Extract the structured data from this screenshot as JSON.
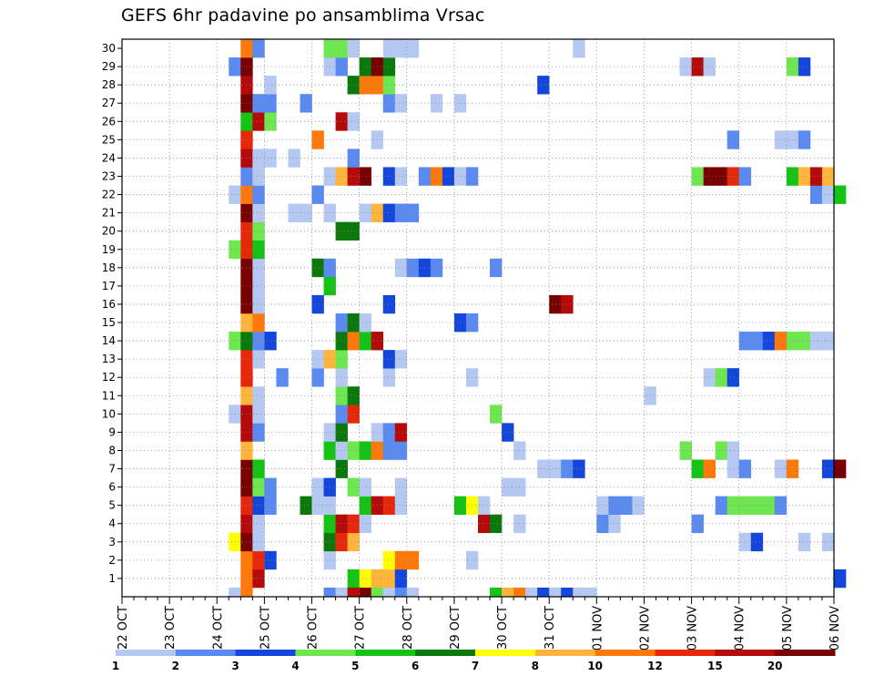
{
  "chart_data": {
    "type": "heatmap",
    "title": "GEFS 6hr padavine po ansamblima Vrsac",
    "xlabel": "",
    "ylabel": "",
    "x_ticks": [
      "22 OCT",
      "23 OCT",
      "24 OCT",
      "25 OCT",
      "26 OCT",
      "27 OCT",
      "28 OCT",
      "29 OCT",
      "30 OCT",
      "31 OCT",
      "01 NOV",
      "02 NOV",
      "03 NOV",
      "04 NOV",
      "05 NOV",
      "06 NOV"
    ],
    "y_ticks": [
      "1",
      "2",
      "3",
      "4",
      "5",
      "6",
      "7",
      "8",
      "9",
      "10",
      "11",
      "12",
      "13",
      "14",
      "15",
      "16",
      "17",
      "18",
      "19",
      "20",
      "21",
      "22",
      "23",
      "24",
      "25",
      "26",
      "27",
      "28",
      "29",
      "30"
    ],
    "xlim": [
      "22 OCT",
      "06 NOV"
    ],
    "time_step_hours": 6,
    "ylim": [
      0,
      30
    ],
    "grid": true,
    "colorbar": {
      "labels": [
        "1",
        "2",
        "3",
        "4",
        "5",
        "6",
        "7",
        "8",
        "10",
        "12",
        "15",
        "20"
      ],
      "colors": [
        "#b4c8f2",
        "#5a8af0",
        "#1446dc",
        "#6ee650",
        "#14c314",
        "#0a780a",
        "#ffff00",
        "#ffb43c",
        "#ff780a",
        "#e6280a",
        "#b40a0a",
        "#780000"
      ]
    },
    "cells": [
      [
        "1",
        "24 OCT 12Z",
        10
      ],
      [
        "1",
        "24 OCT 18Z",
        15
      ],
      [
        "1",
        "26 OCT 18Z",
        5
      ],
      [
        "1",
        "27 OCT 00Z",
        7
      ],
      [
        "1",
        "27 OCT 06Z",
        8
      ],
      [
        "1",
        "27 OCT 12Z",
        8
      ],
      [
        "1",
        "27 OCT 18Z",
        3
      ],
      [
        "1",
        "06 NOV 00Z",
        3
      ],
      [
        "2",
        "24 OCT 12Z",
        10
      ],
      [
        "2",
        "24 OCT 18Z",
        12
      ],
      [
        "2",
        "25 OCT 00Z",
        3
      ],
      [
        "2",
        "26 OCT 06Z",
        1
      ],
      [
        "2",
        "27 OCT 12Z",
        7
      ],
      [
        "2",
        "27 OCT 18Z",
        10
      ],
      [
        "2",
        "28 OCT 00Z",
        10
      ],
      [
        "2",
        "29 OCT 06Z",
        1
      ],
      [
        "3",
        "24 OCT 06Z",
        7
      ],
      [
        "3",
        "24 OCT 12Z",
        20
      ],
      [
        "3",
        "24 OCT 18Z",
        1
      ],
      [
        "3",
        "26 OCT 06Z",
        6
      ],
      [
        "3",
        "26 OCT 12Z",
        12
      ],
      [
        "3",
        "26 OCT 18Z",
        8
      ],
      [
        "3",
        "04 NOV 00Z",
        1
      ],
      [
        "3",
        "04 NOV 06Z",
        3
      ],
      [
        "3",
        "05 NOV 06Z",
        1
      ],
      [
        "3",
        "05 NOV 18Z",
        1
      ],
      [
        "4",
        "24 OCT 12Z",
        15
      ],
      [
        "4",
        "24 OCT 18Z",
        1
      ],
      [
        "4",
        "26 OCT 06Z",
        5
      ],
      [
        "4",
        "26 OCT 12Z",
        15
      ],
      [
        "4",
        "26 OCT 18Z",
        12
      ],
      [
        "4",
        "27 OCT 00Z",
        1
      ],
      [
        "4",
        "29 OCT 12Z",
        15
      ],
      [
        "4",
        "29 OCT 18Z",
        6
      ],
      [
        "4",
        "30 OCT 06Z",
        1
      ],
      [
        "4",
        "01 NOV 00Z",
        2
      ],
      [
        "4",
        "01 NOV 06Z",
        1
      ],
      [
        "4",
        "03 NOV 00Z",
        2
      ],
      [
        "5",
        "24 OCT 12Z",
        12
      ],
      [
        "5",
        "24 OCT 18Z",
        3
      ],
      [
        "5",
        "25 OCT 00Z",
        2
      ],
      [
        "5",
        "25 OCT 18Z",
        6
      ],
      [
        "5",
        "26 OCT 00Z",
        1
      ],
      [
        "5",
        "26 OCT 06Z",
        1
      ],
      [
        "5",
        "27 OCT 00Z",
        5
      ],
      [
        "5",
        "27 OCT 06Z",
        15
      ],
      [
        "5",
        "27 OCT 12Z",
        12
      ],
      [
        "5",
        "27 OCT 18Z",
        1
      ],
      [
        "5",
        "29 OCT 00Z",
        5
      ],
      [
        "5",
        "29 OCT 06Z",
        7
      ],
      [
        "5",
        "29 OCT 12Z",
        1
      ],
      [
        "5",
        "01 NOV 00Z",
        1
      ],
      [
        "5",
        "01 NOV 06Z",
        2
      ],
      [
        "5",
        "01 NOV 12Z",
        2
      ],
      [
        "5",
        "01 NOV 18Z",
        1
      ],
      [
        "5",
        "03 NOV 12Z",
        2
      ],
      [
        "5",
        "03 NOV 18Z",
        4
      ],
      [
        "5",
        "04 NOV 00Z",
        4
      ],
      [
        "5",
        "04 NOV 06Z",
        4
      ],
      [
        "5",
        "04 NOV 12Z",
        4
      ],
      [
        "5",
        "04 NOV 18Z",
        2
      ],
      [
        "6",
        "24 OCT 12Z",
        20
      ],
      [
        "6",
        "24 OCT 18Z",
        4
      ],
      [
        "6",
        "25 OCT 00Z",
        2
      ],
      [
        "6",
        "26 OCT 00Z",
        1
      ],
      [
        "6",
        "26 OCT 06Z",
        3
      ],
      [
        "6",
        "26 OCT 18Z",
        4
      ],
      [
        "6",
        "27 OCT 00Z",
        1
      ],
      [
        "6",
        "27 OCT 18Z",
        1
      ],
      [
        "6",
        "30 OCT 00Z",
        1
      ],
      [
        "6",
        "30 OCT 06Z",
        1
      ],
      [
        "7",
        "24 OCT 12Z",
        20
      ],
      [
        "7",
        "24 OCT 18Z",
        5
      ],
      [
        "7",
        "26 OCT 12Z",
        6
      ],
      [
        "7",
        "30 OCT 18Z",
        1
      ],
      [
        "7",
        "31 OCT 00Z",
        1
      ],
      [
        "7",
        "31 OCT 06Z",
        2
      ],
      [
        "7",
        "31 OCT 12Z",
        3
      ],
      [
        "7",
        "03 NOV 00Z",
        5
      ],
      [
        "7",
        "03 NOV 06Z",
        10
      ],
      [
        "7",
        "03 NOV 18Z",
        1
      ],
      [
        "7",
        "04 NOV 00Z",
        2
      ],
      [
        "7",
        "04 NOV 18Z",
        1
      ],
      [
        "7",
        "05 NOV 00Z",
        10
      ],
      [
        "7",
        "05 NOV 18Z",
        3
      ],
      [
        "7",
        "06 NOV 00Z",
        20
      ],
      [
        "8",
        "24 OCT 12Z",
        8
      ],
      [
        "8",
        "26 OCT 06Z",
        5
      ],
      [
        "8",
        "26 OCT 12Z",
        1
      ],
      [
        "8",
        "26 OCT 18Z",
        4
      ],
      [
        "8",
        "27 OCT 00Z",
        5
      ],
      [
        "8",
        "27 OCT 06Z",
        10
      ],
      [
        "8",
        "27 OCT 12Z",
        2
      ],
      [
        "8",
        "27 OCT 18Z",
        2
      ],
      [
        "8",
        "30 OCT 06Z",
        1
      ],
      [
        "8",
        "02 NOV 18Z",
        4
      ],
      [
        "8",
        "03 NOV 12Z",
        4
      ],
      [
        "8",
        "03 NOV 18Z",
        1
      ],
      [
        "9",
        "24 OCT 12Z",
        15
      ],
      [
        "9",
        "24 OCT 18Z",
        2
      ],
      [
        "9",
        "26 OCT 06Z",
        1
      ],
      [
        "9",
        "26 OCT 12Z",
        6
      ],
      [
        "9",
        "27 OCT 06Z",
        1
      ],
      [
        "9",
        "27 OCT 12Z",
        2
      ],
      [
        "9",
        "27 OCT 18Z",
        15
      ],
      [
        "9",
        "30 OCT 00Z",
        3
      ],
      [
        "10",
        "24 OCT 06Z",
        1
      ],
      [
        "10",
        "24 OCT 12Z",
        15
      ],
      [
        "10",
        "24 OCT 18Z",
        1
      ],
      [
        "10",
        "26 OCT 12Z",
        2
      ],
      [
        "10",
        "26 OCT 18Z",
        12
      ],
      [
        "10",
        "29 OCT 18Z",
        4
      ],
      [
        "11",
        "24 OCT 12Z",
        8
      ],
      [
        "11",
        "24 OCT 18Z",
        1
      ],
      [
        "11",
        "26 OCT 12Z",
        4
      ],
      [
        "11",
        "26 OCT 18Z",
        6
      ],
      [
        "11",
        "02 NOV 00Z",
        1
      ],
      [
        "12",
        "24 OCT 12Z",
        12
      ],
      [
        "12",
        "25 OCT 06Z",
        2
      ],
      [
        "12",
        "26 OCT 00Z",
        2
      ],
      [
        "12",
        "26 OCT 12Z",
        1
      ],
      [
        "12",
        "27 OCT 12Z",
        1
      ],
      [
        "12",
        "29 OCT 06Z",
        1
      ],
      [
        "12",
        "03 NOV 06Z",
        1
      ],
      [
        "12",
        "03 NOV 12Z",
        4
      ],
      [
        "12",
        "03 NOV 18Z",
        3
      ],
      [
        "13",
        "24 OCT 12Z",
        12
      ],
      [
        "13",
        "24 OCT 18Z",
        1
      ],
      [
        "13",
        "26 OCT 00Z",
        1
      ],
      [
        "13",
        "26 OCT 06Z",
        8
      ],
      [
        "13",
        "26 OCT 12Z",
        4
      ],
      [
        "13",
        "27 OCT 12Z",
        3
      ],
      [
        "13",
        "27 OCT 18Z",
        1
      ],
      [
        "14",
        "24 OCT 06Z",
        4
      ],
      [
        "14",
        "24 OCT 12Z",
        6
      ],
      [
        "14",
        "24 OCT 18Z",
        2
      ],
      [
        "14",
        "25 OCT 00Z",
        3
      ],
      [
        "14",
        "26 OCT 12Z",
        6
      ],
      [
        "14",
        "26 OCT 18Z",
        10
      ],
      [
        "14",
        "27 OCT 00Z",
        5
      ],
      [
        "14",
        "27 OCT 06Z",
        15
      ],
      [
        "14",
        "04 NOV 00Z",
        2
      ],
      [
        "14",
        "04 NOV 06Z",
        2
      ],
      [
        "14",
        "04 NOV 12Z",
        3
      ],
      [
        "14",
        "04 NOV 18Z",
        10
      ],
      [
        "14",
        "05 NOV 00Z",
        4
      ],
      [
        "14",
        "05 NOV 06Z",
        4
      ],
      [
        "14",
        "05 NOV 12Z",
        1
      ],
      [
        "14",
        "05 NOV 18Z",
        1
      ],
      [
        "15",
        "24 OCT 12Z",
        8
      ],
      [
        "15",
        "24 OCT 18Z",
        10
      ],
      [
        "15",
        "26 OCT 12Z",
        2
      ],
      [
        "15",
        "26 OCT 18Z",
        6
      ],
      [
        "15",
        "27 OCT 00Z",
        1
      ],
      [
        "15",
        "29 OCT 00Z",
        3
      ],
      [
        "15",
        "29 OCT 06Z",
        2
      ],
      [
        "16",
        "24 OCT 12Z",
        20
      ],
      [
        "16",
        "24 OCT 18Z",
        1
      ],
      [
        "16",
        "26 OCT 00Z",
        3
      ],
      [
        "16",
        "27 OCT 12Z",
        3
      ],
      [
        "16",
        "31 OCT 00Z",
        20
      ],
      [
        "16",
        "31 OCT 06Z",
        15
      ],
      [
        "17",
        "24 OCT 12Z",
        20
      ],
      [
        "17",
        "24 OCT 18Z",
        1
      ],
      [
        "17",
        "26 OCT 06Z",
        5
      ],
      [
        "18",
        "24 OCT 12Z",
        20
      ],
      [
        "18",
        "24 OCT 18Z",
        1
      ],
      [
        "18",
        "26 OCT 00Z",
        6
      ],
      [
        "18",
        "26 OCT 06Z",
        2
      ],
      [
        "18",
        "27 OCT 18Z",
        1
      ],
      [
        "18",
        "28 OCT 00Z",
        2
      ],
      [
        "18",
        "28 OCT 06Z",
        3
      ],
      [
        "18",
        "28 OCT 12Z",
        2
      ],
      [
        "18",
        "29 OCT 18Z",
        2
      ],
      [
        "19",
        "24 OCT 06Z",
        4
      ],
      [
        "19",
        "24 OCT 12Z",
        12
      ],
      [
        "19",
        "24 OCT 18Z",
        5
      ],
      [
        "20",
        "24 OCT 12Z",
        12
      ],
      [
        "20",
        "24 OCT 18Z",
        4
      ],
      [
        "20",
        "26 OCT 12Z",
        6
      ],
      [
        "20",
        "26 OCT 18Z",
        6
      ],
      [
        "21",
        "24 OCT 12Z",
        20
      ],
      [
        "21",
        "24 OCT 18Z",
        1
      ],
      [
        "21",
        "25 OCT 12Z",
        1
      ],
      [
        "21",
        "25 OCT 18Z",
        1
      ],
      [
        "21",
        "26 OCT 06Z",
        1
      ],
      [
        "21",
        "27 OCT 00Z",
        1
      ],
      [
        "21",
        "27 OCT 06Z",
        8
      ],
      [
        "21",
        "27 OCT 12Z",
        3
      ],
      [
        "21",
        "27 OCT 18Z",
        2
      ],
      [
        "21",
        "28 OCT 00Z",
        2
      ],
      [
        "22",
        "24 OCT 06Z",
        1
      ],
      [
        "22",
        "24 OCT 12Z",
        10
      ],
      [
        "22",
        "24 OCT 18Z",
        2
      ],
      [
        "22",
        "26 OCT 00Z",
        2
      ],
      [
        "22",
        "05 NOV 12Z",
        2
      ],
      [
        "22",
        "05 NOV 18Z",
        1
      ],
      [
        "22",
        "06 NOV 00Z",
        5
      ],
      [
        "23",
        "24 OCT 12Z",
        2
      ],
      [
        "23",
        "24 OCT 18Z",
        1
      ],
      [
        "23",
        "26 OCT 06Z",
        1
      ],
      [
        "23",
        "26 OCT 12Z",
        8
      ],
      [
        "23",
        "26 OCT 18Z",
        15
      ],
      [
        "23",
        "27 OCT 00Z",
        20
      ],
      [
        "23",
        "27 OCT 12Z",
        3
      ],
      [
        "23",
        "27 OCT 18Z",
        1
      ],
      [
        "23",
        "28 OCT 06Z",
        2
      ],
      [
        "23",
        "28 OCT 12Z",
        10
      ],
      [
        "23",
        "28 OCT 18Z",
        3
      ],
      [
        "23",
        "29 OCT 00Z",
        1
      ],
      [
        "23",
        "29 OCT 06Z",
        2
      ],
      [
        "23",
        "03 NOV 00Z",
        4
      ],
      [
        "23",
        "03 NOV 06Z",
        20
      ],
      [
        "23",
        "03 NOV 12Z",
        20
      ],
      [
        "23",
        "03 NOV 18Z",
        12
      ],
      [
        "23",
        "04 NOV 00Z",
        2
      ],
      [
        "23",
        "05 NOV 00Z",
        5
      ],
      [
        "23",
        "05 NOV 06Z",
        8
      ],
      [
        "23",
        "05 NOV 12Z",
        15
      ],
      [
        "23",
        "05 NOV 18Z",
        8
      ],
      [
        "24",
        "24 OCT 12Z",
        15
      ],
      [
        "24",
        "24 OCT 18Z",
        1
      ],
      [
        "24",
        "25 OCT 00Z",
        1
      ],
      [
        "24",
        "25 OCT 12Z",
        1
      ],
      [
        "24",
        "26 OCT 18Z",
        2
      ],
      [
        "25",
        "24 OCT 12Z",
        12
      ],
      [
        "25",
        "26 OCT 00Z",
        10
      ],
      [
        "25",
        "27 OCT 06Z",
        1
      ],
      [
        "25",
        "03 NOV 18Z",
        2
      ],
      [
        "25",
        "04 NOV 18Z",
        1
      ],
      [
        "25",
        "05 NOV 00Z",
        1
      ],
      [
        "25",
        "05 NOV 06Z",
        2
      ],
      [
        "26",
        "24 OCT 12Z",
        5
      ],
      [
        "26",
        "24 OCT 18Z",
        15
      ],
      [
        "26",
        "25 OCT 00Z",
        4
      ],
      [
        "26",
        "26 OCT 12Z",
        15
      ],
      [
        "26",
        "26 OCT 18Z",
        1
      ],
      [
        "27",
        "24 OCT 12Z",
        20
      ],
      [
        "27",
        "24 OCT 18Z",
        2
      ],
      [
        "27",
        "25 OCT 00Z",
        2
      ],
      [
        "27",
        "25 OCT 18Z",
        2
      ],
      [
        "27",
        "27 OCT 12Z",
        2
      ],
      [
        "27",
        "27 OCT 18Z",
        1
      ],
      [
        "27",
        "28 OCT 12Z",
        1
      ],
      [
        "27",
        "29 OCT 00Z",
        1
      ],
      [
        "28",
        "24 OCT 12Z",
        15
      ],
      [
        "28",
        "25 OCT 00Z",
        1
      ],
      [
        "28",
        "26 OCT 18Z",
        6
      ],
      [
        "28",
        "27 OCT 00Z",
        10
      ],
      [
        "28",
        "27 OCT 06Z",
        10
      ],
      [
        "28",
        "27 OCT 12Z",
        4
      ],
      [
        "28",
        "30 OCT 18Z",
        3
      ],
      [
        "29",
        "24 OCT 06Z",
        2
      ],
      [
        "29",
        "24 OCT 12Z",
        20
      ],
      [
        "29",
        "26 OCT 06Z",
        1
      ],
      [
        "29",
        "26 OCT 12Z",
        2
      ],
      [
        "29",
        "27 OCT 00Z",
        6
      ],
      [
        "29",
        "27 OCT 06Z",
        20
      ],
      [
        "29",
        "27 OCT 12Z",
        6
      ],
      [
        "29",
        "02 NOV 18Z",
        1
      ],
      [
        "29",
        "03 NOV 00Z",
        15
      ],
      [
        "29",
        "03 NOV 06Z",
        1
      ],
      [
        "29",
        "05 NOV 00Z",
        4
      ],
      [
        "29",
        "05 NOV 06Z",
        3
      ],
      [
        "30",
        "24 OCT 12Z",
        10
      ],
      [
        "30",
        "24 OCT 18Z",
        2
      ],
      [
        "30",
        "26 OCT 06Z",
        4
      ],
      [
        "30",
        "26 OCT 12Z",
        4
      ],
      [
        "30",
        "26 OCT 18Z",
        1
      ],
      [
        "30",
        "27 OCT 12Z",
        1
      ],
      [
        "30",
        "27 OCT 18Z",
        1
      ],
      [
        "30",
        "28 OCT 00Z",
        1
      ],
      [
        "30",
        "31 OCT 12Z",
        1
      ],
      [
        "0",
        "24 OCT 06Z",
        1
      ],
      [
        "0",
        "24 OCT 12Z",
        10
      ],
      [
        "0",
        "26 OCT 06Z",
        2
      ],
      [
        "0",
        "26 OCT 12Z",
        1
      ],
      [
        "0",
        "26 OCT 18Z",
        15
      ],
      [
        "0",
        "27 OCT 00Z",
        20
      ],
      [
        "0",
        "27 OCT 06Z",
        4
      ],
      [
        "0",
        "27 OCT 12Z",
        1
      ],
      [
        "0",
        "27 OCT 18Z",
        2
      ],
      [
        "0",
        "28 OCT 00Z",
        1
      ],
      [
        "0",
        "29 OCT 18Z",
        5
      ],
      [
        "0",
        "30 OCT 00Z",
        8
      ],
      [
        "0",
        "30 OCT 06Z",
        10
      ],
      [
        "0",
        "30 OCT 12Z",
        1
      ],
      [
        "0",
        "30 OCT 18Z",
        3
      ],
      [
        "0",
        "31 OCT 00Z",
        1
      ],
      [
        "0",
        "31 OCT 06Z",
        3
      ],
      [
        "0",
        "31 OCT 12Z",
        1
      ],
      [
        "0",
        "31 OCT 18Z",
        1
      ]
    ]
  }
}
